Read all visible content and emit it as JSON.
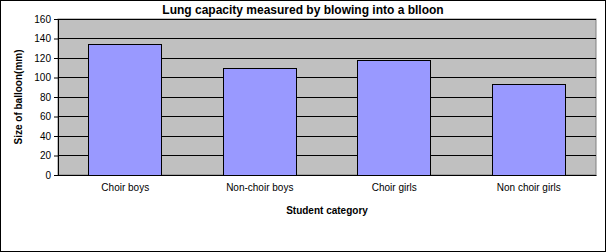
{
  "chart_data": {
    "type": "bar",
    "title": "Lung capacity measured by blowing into a blloon",
    "x_label": "Student category",
    "y_label": "Size of balloon(mm)",
    "categories": [
      "Choir boys",
      "Non-choir boys",
      "Choir girls",
      "Non choir girls"
    ],
    "values": [
      134,
      109,
      117,
      93
    ],
    "color": "#9999ff",
    "ylim": [
      0,
      160
    ],
    "yticks": [
      0,
      20,
      40,
      60,
      80,
      100,
      120,
      140,
      160
    ],
    "grid": true
  }
}
